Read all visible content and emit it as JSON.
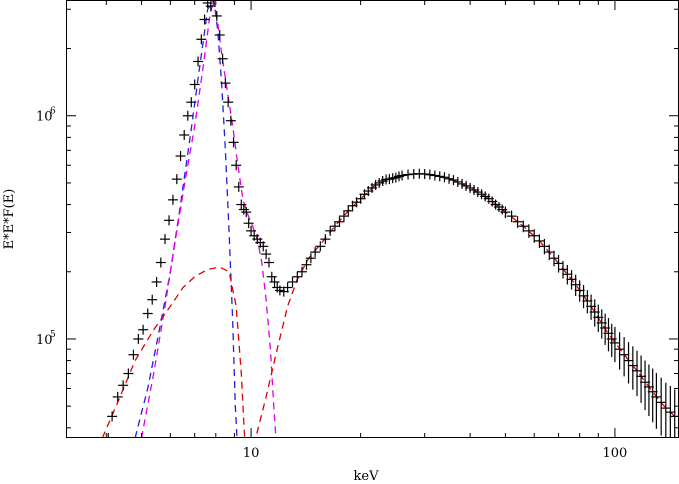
{
  "chart_data": {
    "type": "scatter",
    "title": "",
    "xlabel": "keV",
    "ylabel": "E*E*F(E)",
    "xscale": "log",
    "yscale": "log",
    "xlim": [
      3.1,
      150
    ],
    "ylim": [
      36000,
      3300000
    ],
    "x_tick_labels": [
      {
        "value": 10,
        "text": "10"
      },
      {
        "value": 100,
        "text": "100"
      }
    ],
    "y_tick_labels": [
      {
        "value": 100000,
        "base": "10",
        "exp": "5"
      },
      {
        "value": 1000000,
        "base": "10",
        "exp": "6"
      }
    ],
    "grid": false,
    "legend": "none",
    "series": [
      {
        "kind": "data points with error bars",
        "color": "#000000",
        "points": [
          [
            4.05,
            36000,
            0
          ],
          [
            4.15,
            45000,
            0
          ],
          [
            4.3,
            55000,
            0
          ],
          [
            4.45,
            62000,
            0
          ],
          [
            4.6,
            70000,
            0
          ],
          [
            4.75,
            85000,
            0
          ],
          [
            4.9,
            100000,
            0
          ],
          [
            5.05,
            110000,
            0
          ],
          [
            5.2,
            130000,
            0
          ],
          [
            5.35,
            150000,
            0
          ],
          [
            5.5,
            180000,
            0
          ],
          [
            5.65,
            220000,
            0
          ],
          [
            5.8,
            280000,
            0
          ],
          [
            5.95,
            340000,
            0
          ],
          [
            6.1,
            420000,
            0
          ],
          [
            6.25,
            520000,
            0
          ],
          [
            6.4,
            660000,
            0
          ],
          [
            6.55,
            820000,
            0
          ],
          [
            6.7,
            1000000,
            0
          ],
          [
            6.85,
            1150000,
            0
          ],
          [
            7.0,
            1380000,
            0
          ],
          [
            7.15,
            1750000,
            0
          ],
          [
            7.3,
            2200000,
            0
          ],
          [
            7.45,
            2700000,
            0
          ],
          [
            7.6,
            3200000,
            0
          ],
          [
            7.75,
            3100000,
            0
          ],
          [
            7.9,
            3300000,
            0
          ],
          [
            8.05,
            2800000,
            0
          ],
          [
            8.2,
            2300000,
            0
          ],
          [
            8.35,
            1800000,
            0
          ],
          [
            8.5,
            1400000,
            0
          ],
          [
            8.65,
            1150000,
            0
          ],
          [
            8.8,
            950000,
            0
          ],
          [
            8.95,
            760000,
            0
          ],
          [
            9.1,
            600000,
            0
          ],
          [
            9.25,
            480000,
            0
          ],
          [
            9.4,
            400000,
            0
          ],
          [
            9.55,
            380000,
            0
          ],
          [
            9.7,
            370000,
            0
          ],
          [
            9.85,
            330000,
            0
          ],
          [
            10.0,
            305000,
            0
          ],
          [
            10.2,
            290000,
            0
          ],
          [
            10.4,
            280000,
            0
          ],
          [
            10.6,
            270000,
            0
          ],
          [
            10.8,
            260000,
            0
          ],
          [
            11.0,
            240000,
            0
          ],
          [
            11.2,
            220000,
            0
          ],
          [
            11.4,
            190000,
            0
          ],
          [
            11.6,
            180000,
            0
          ],
          [
            11.8,
            170000,
            0
          ],
          [
            12.0,
            165000,
            0
          ],
          [
            12.3,
            163000,
            0
          ],
          [
            12.6,
            170000,
            0
          ],
          [
            13.0,
            180000,
            0
          ],
          [
            13.4,
            190000,
            0
          ],
          [
            13.8,
            200000,
            0
          ],
          [
            14.2,
            215000,
            0
          ],
          [
            14.6,
            230000,
            0
          ],
          [
            15.0,
            245000,
            0
          ],
          [
            15.5,
            260000,
            0
          ],
          [
            16.0,
            280000,
            0
          ],
          [
            16.5,
            305000,
            0
          ],
          [
            17.0,
            320000,
            0
          ],
          [
            17.5,
            335000,
            0
          ],
          [
            18.0,
            355000,
            0
          ],
          [
            18.5,
            375000,
            0
          ],
          [
            19.0,
            395000,
            0
          ],
          [
            19.5,
            410000,
            0
          ],
          [
            20.0,
            425000,
            0
          ],
          [
            20.5,
            445000,
            0
          ],
          [
            21.0,
            460000,
            0
          ],
          [
            21.5,
            475000,
            0
          ],
          [
            22.0,
            490000,
            0
          ],
          [
            22.5,
            500000,
            0
          ],
          [
            23.0,
            510000,
            0
          ],
          [
            23.5,
            518000,
            0
          ],
          [
            24.0,
            520000,
            0.03
          ],
          [
            24.5,
            525000,
            0.03
          ],
          [
            25.0,
            528000,
            0.03
          ],
          [
            25.5,
            535000,
            0.03
          ],
          [
            26.0,
            540000,
            0.03
          ],
          [
            27.0,
            545000,
            0.03
          ],
          [
            28.0,
            548000,
            0.03
          ],
          [
            29.0,
            550000,
            0.03
          ],
          [
            30.0,
            548000,
            0.03
          ],
          [
            31.0,
            545000,
            0.03
          ],
          [
            32.0,
            540000,
            0.03
          ],
          [
            33.0,
            535000,
            0.03
          ],
          [
            34.0,
            530000,
            0.03
          ],
          [
            35.0,
            522000,
            0.04
          ],
          [
            36.0,
            515000,
            0.04
          ],
          [
            37.0,
            505000,
            0.04
          ],
          [
            38.0,
            495000,
            0.04
          ],
          [
            39.0,
            485000,
            0.04
          ],
          [
            40.0,
            475000,
            0.04
          ],
          [
            41.0,
            465000,
            0.04
          ],
          [
            42.0,
            455000,
            0.05
          ],
          [
            43.0,
            445000,
            0.05
          ],
          [
            44.0,
            435000,
            0.05
          ],
          [
            45.0,
            425000,
            0.05
          ],
          [
            46.0,
            413000,
            0.05
          ],
          [
            47.0,
            400000,
            0.05
          ],
          [
            48.0,
            390000,
            0.05
          ],
          [
            49.0,
            380000,
            0.05
          ],
          [
            50.0,
            370000,
            0.06
          ],
          [
            52.0,
            355000,
            0.06
          ],
          [
            54.0,
            335000,
            0.06
          ],
          [
            56.0,
            320000,
            0.06
          ],
          [
            58.0,
            305000,
            0.07
          ],
          [
            60.0,
            290000,
            0.07
          ],
          [
            62.0,
            275000,
            0.07
          ],
          [
            64.0,
            260000,
            0.08
          ],
          [
            66.0,
            245000,
            0.08
          ],
          [
            68.0,
            230000,
            0.08
          ],
          [
            70.0,
            218000,
            0.09
          ],
          [
            72.0,
            205000,
            0.09
          ],
          [
            74.0,
            195000,
            0.1
          ],
          [
            76.0,
            185000,
            0.1
          ],
          [
            78.0,
            175000,
            0.11
          ],
          [
            80.0,
            165000,
            0.11
          ],
          [
            82.0,
            156000,
            0.12
          ],
          [
            84.0,
            148000,
            0.12
          ],
          [
            86.0,
            140000,
            0.13
          ],
          [
            88.0,
            132000,
            0.14
          ],
          [
            90.0,
            125000,
            0.14
          ],
          [
            92.0,
            118000,
            0.15
          ],
          [
            94.0,
            112000,
            0.16
          ],
          [
            96.0,
            106000,
            0.17
          ],
          [
            98.0,
            100000,
            0.17
          ],
          [
            100.0,
            96000,
            0.18
          ],
          [
            103.0,
            90000,
            0.19
          ],
          [
            106.0,
            85000,
            0.2
          ],
          [
            109.0,
            80000,
            0.21
          ],
          [
            112.0,
            76000,
            0.22
          ],
          [
            115.0,
            72000,
            0.23
          ],
          [
            118.0,
            68000,
            0.24
          ],
          [
            121.0,
            64000,
            0.25
          ],
          [
            124.0,
            61000,
            0.26
          ],
          [
            127.0,
            58000,
            0.27
          ],
          [
            130.0,
            55000,
            0.28
          ],
          [
            134.0,
            52000,
            0.29
          ],
          [
            138.0,
            49000,
            0.3
          ],
          [
            142.0,
            47000,
            0.31
          ],
          [
            146.0,
            45000,
            0.32
          ]
        ]
      },
      {
        "kind": "model component",
        "color": "#2020e0",
        "dashed": true,
        "points": [
          [
            4.8,
            36000
          ],
          [
            5.2,
            60000
          ],
          [
            5.6,
            110000
          ],
          [
            6.0,
            200000
          ],
          [
            6.4,
            400000
          ],
          [
            6.8,
            800000
          ],
          [
            7.2,
            1600000
          ],
          [
            7.6,
            3000000
          ],
          [
            7.9,
            3300000
          ],
          [
            8.1,
            2400000
          ],
          [
            8.3,
            1400000
          ],
          [
            8.5,
            700000
          ],
          [
            8.7,
            300000
          ],
          [
            8.9,
            120000
          ],
          [
            9.05,
            50000
          ],
          [
            9.15,
            36000
          ]
        ]
      },
      {
        "kind": "model component",
        "color": "#e000e0",
        "dashed": true,
        "points": [
          [
            5.0,
            36000
          ],
          [
            5.4,
            70000
          ],
          [
            5.8,
            140000
          ],
          [
            6.2,
            280000
          ],
          [
            6.6,
            520000
          ],
          [
            7.0,
            900000
          ],
          [
            7.4,
            1700000
          ],
          [
            7.7,
            2800000
          ],
          [
            7.9,
            3300000
          ],
          [
            8.1,
            2600000
          ],
          [
            8.3,
            1900000
          ],
          [
            8.6,
            1300000
          ],
          [
            8.9,
            900000
          ],
          [
            9.2,
            600000
          ],
          [
            9.5,
            420000
          ],
          [
            9.8,
            360000
          ],
          [
            10.1,
            320000
          ],
          [
            10.4,
            280000
          ],
          [
            10.7,
            220000
          ],
          [
            11.0,
            150000
          ],
          [
            11.3,
            90000
          ],
          [
            11.5,
            55000
          ],
          [
            11.7,
            36000
          ]
        ]
      },
      {
        "kind": "model total",
        "color": "#e00000",
        "dashed": true,
        "points": [
          [
            3.9,
            36000
          ],
          [
            4.3,
            52000
          ],
          [
            4.8,
            80000
          ],
          [
            5.4,
            110000
          ],
          [
            6.0,
            140000
          ],
          [
            6.5,
            170000
          ],
          [
            7.0,
            190000
          ],
          [
            7.6,
            205000
          ],
          [
            8.2,
            210000
          ],
          [
            8.7,
            200000
          ],
          [
            9.1,
            140000
          ],
          [
            9.4,
            70000
          ],
          [
            9.6,
            36000
          ],
          [
            10.3,
            36000
          ],
          [
            11.0,
            55000
          ],
          [
            11.8,
            90000
          ],
          [
            12.6,
            140000
          ],
          [
            13.4,
            185000
          ],
          [
            14.4,
            230000
          ],
          [
            15.5,
            265000
          ],
          [
            17.0,
            320000
          ],
          [
            18.5,
            375000
          ],
          [
            20.0,
            425000
          ],
          [
            22.0,
            490000
          ],
          [
            24.0,
            520000
          ],
          [
            26.0,
            540000
          ],
          [
            29.0,
            550000
          ],
          [
            32.0,
            540000
          ],
          [
            36.0,
            515000
          ],
          [
            40.0,
            475000
          ],
          [
            45.0,
            425000
          ],
          [
            50.0,
            370000
          ],
          [
            56.0,
            320000
          ],
          [
            62.0,
            275000
          ],
          [
            70.0,
            218000
          ],
          [
            78.0,
            175000
          ],
          [
            86.0,
            140000
          ],
          [
            95.0,
            108000
          ],
          [
            105.0,
            87000
          ],
          [
            115.0,
            72000
          ],
          [
            125.0,
            60000
          ],
          [
            135.0,
            51000
          ],
          [
            146.0,
            45000
          ]
        ]
      }
    ]
  }
}
